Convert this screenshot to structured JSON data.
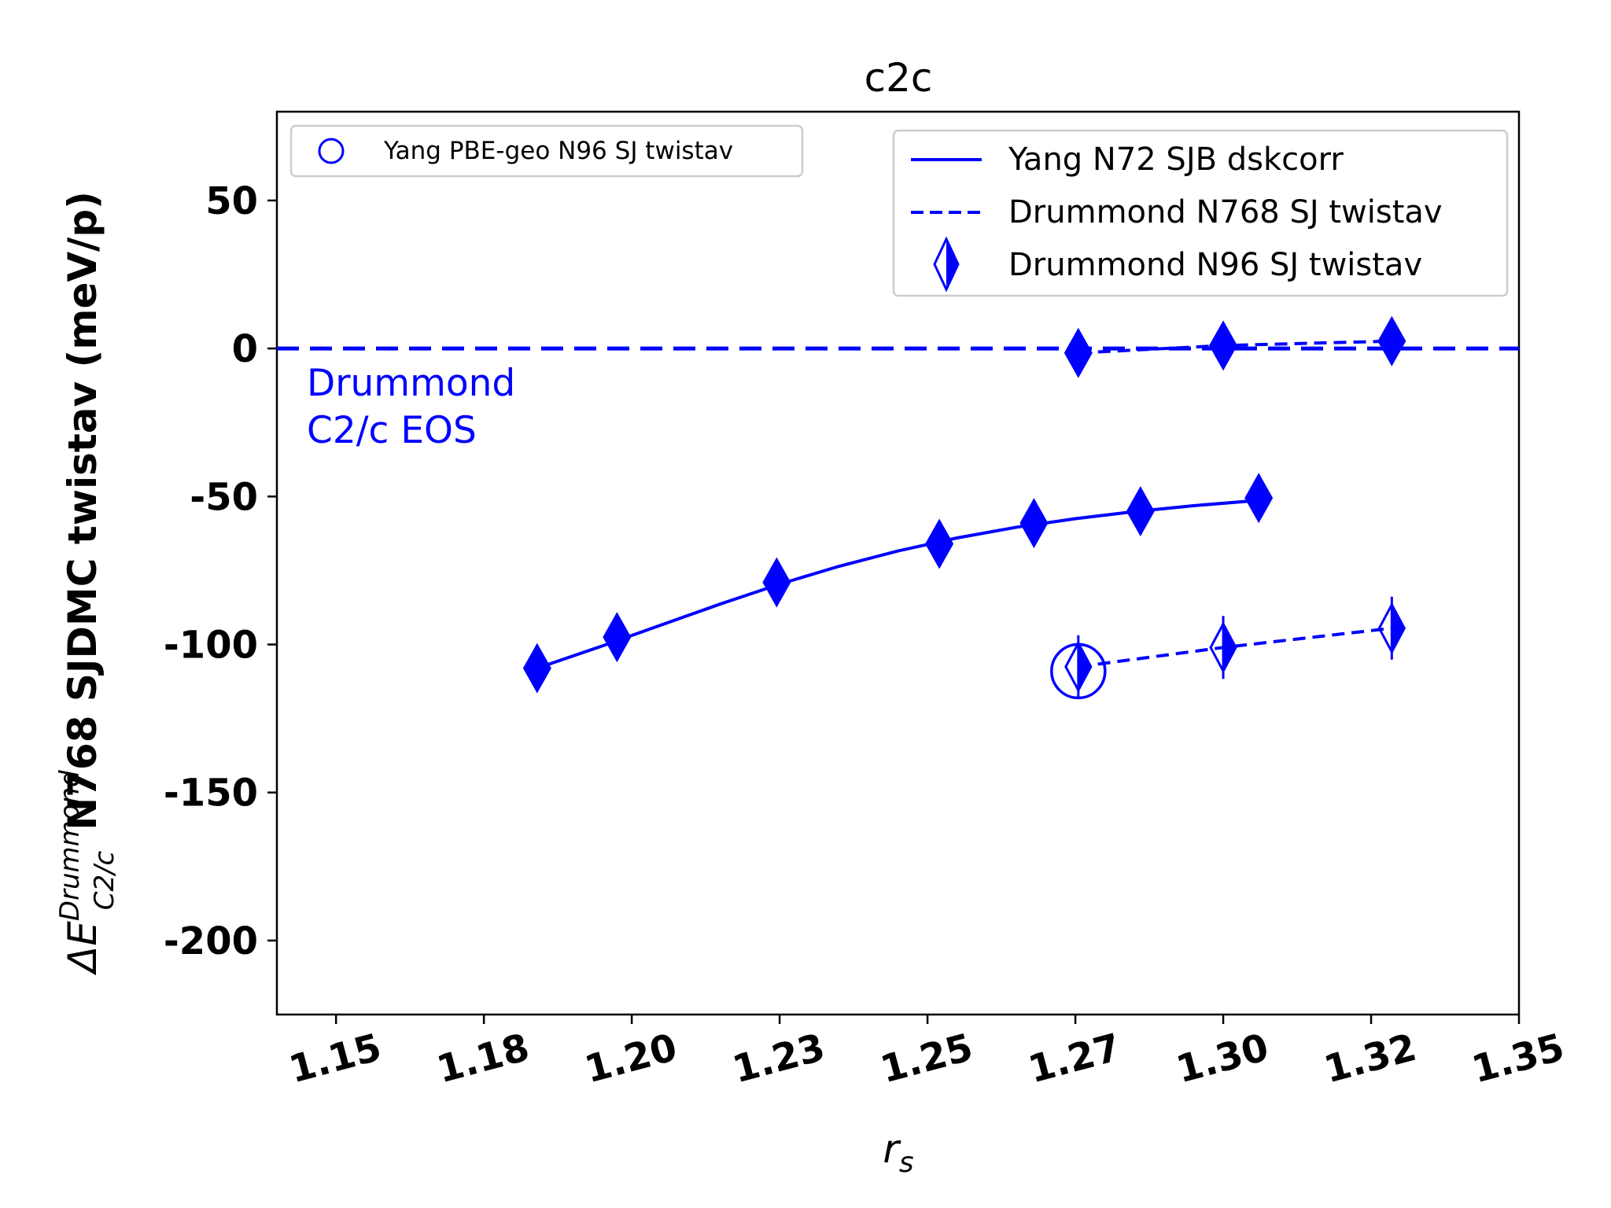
{
  "chart_data": {
    "type": "line",
    "title": "c2c",
    "xlabel": "r_s",
    "ylabel_main": "N768 SJDMC twistav (meV/p)",
    "ylabel_prefix": "ΔE",
    "ylabel_super": "Drummond",
    "ylabel_sub": "C2/c",
    "xlim": [
      1.135,
      1.345
    ],
    "ylim": [
      -225,
      80
    ],
    "x_ticks": [
      1.145,
      1.17,
      1.195,
      1.22,
      1.245,
      1.27,
      1.295,
      1.32,
      1.345
    ],
    "x_tick_labels": [
      "1.15",
      "1.18",
      "1.20",
      "1.23",
      "1.25",
      "1.27",
      "1.30",
      "1.32",
      "1.35"
    ],
    "y_ticks": [
      50,
      0,
      -50,
      -100,
      -150,
      -200
    ],
    "y_tick_labels": [
      "50",
      "0",
      "-50",
      "-100",
      "-150",
      "-200"
    ],
    "color": "#0000ff",
    "reference_line": {
      "y": 0,
      "style": "dashed"
    },
    "annotation": [
      "Drummond",
      "C2/c EOS"
    ],
    "series": [
      {
        "name": "Yang N72 SJB dskcorr",
        "style": "solid",
        "marker": "filled-diamond",
        "x": [
          1.179,
          1.1925,
          1.2195,
          1.247,
          1.263,
          1.281,
          1.301
        ],
        "y": [
          -108,
          -97.5,
          -79,
          -66,
          -59,
          -55,
          -50.5
        ],
        "fit_x": [
          1.179,
          1.19,
          1.2,
          1.21,
          1.22,
          1.23,
          1.24,
          1.25,
          1.26,
          1.27,
          1.28,
          1.29,
          1.301
        ],
        "fit_y": [
          -108,
          -100.5,
          -93.4,
          -86.3,
          -79.6,
          -73.6,
          -68.4,
          -64,
          -60.4,
          -57.5,
          -55.1,
          -53.1,
          -51.3
        ]
      },
      {
        "name": "Drummond N768 SJ twistav",
        "style": "dashed",
        "marker": "filled-diamond",
        "x": [
          1.2705,
          1.295,
          1.3235
        ],
        "y": [
          -1.5,
          1,
          2.5
        ]
      },
      {
        "name": "Drummond N96 SJ twistav",
        "style": "dashed",
        "marker": "half-diamond",
        "x": [
          1.2705,
          1.295,
          1.3235
        ],
        "y": [
          -107.5,
          -101,
          -94.5
        ]
      },
      {
        "name": "Yang PBE-geo N96 SJ twistav",
        "style": "none",
        "marker": "open-circle",
        "x": [
          1.2705
        ],
        "y": [
          -109
        ]
      }
    ],
    "legend_main": [
      {
        "label": "Yang N72 SJB dskcorr",
        "style": "solid"
      },
      {
        "label": "Drummond N768 SJ twistav",
        "style": "dashed"
      },
      {
        "label": "Drummond N96 SJ twistav",
        "style": "half-diamond"
      }
    ],
    "legend_secondary": [
      {
        "label": "Yang PBE-geo N96 SJ twistav",
        "style": "open-circle"
      }
    ],
    "legend_main_position": "top-right",
    "legend_secondary_position": "top-left"
  }
}
